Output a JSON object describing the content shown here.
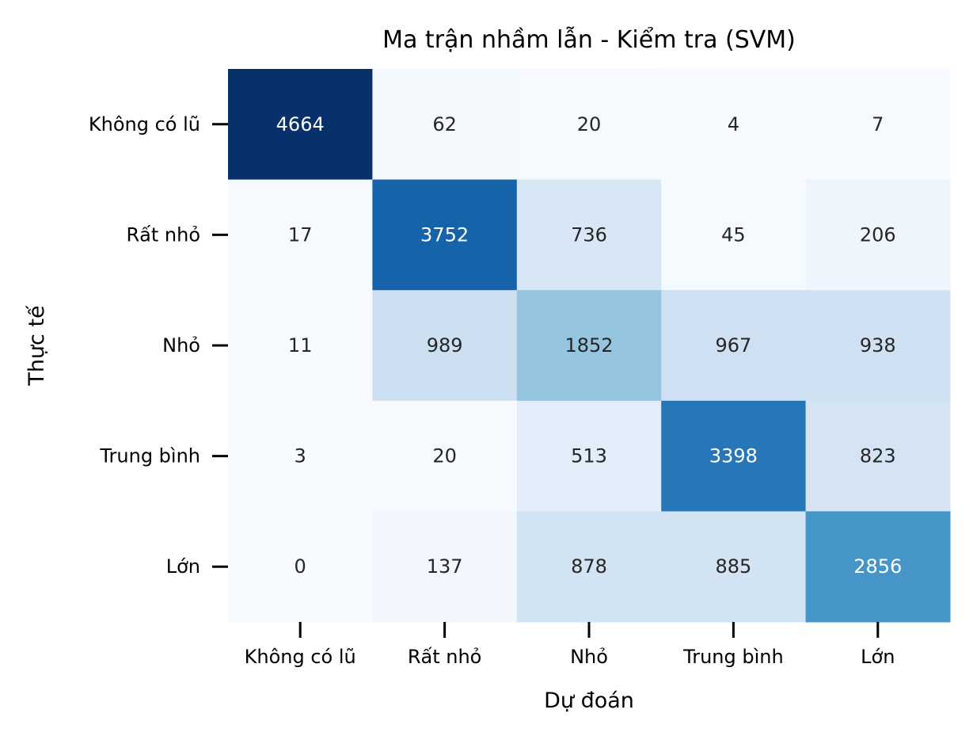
{
  "chart_data": {
    "type": "heatmap",
    "title": "Ma trận nhầm lẫn - Kiểm tra (SVM)",
    "xlabel": "Dự đoán",
    "ylabel": "Thực tế",
    "x_categories": [
      "Không có lũ",
      "Rất nhỏ",
      "Nhỏ",
      "Trung bình",
      "Lớn"
    ],
    "y_categories": [
      "Không có lũ",
      "Rất nhỏ",
      "Nhỏ",
      "Trung bình",
      "Lớn"
    ],
    "values": [
      [
        4664,
        62,
        20,
        4,
        7
      ],
      [
        17,
        3752,
        736,
        45,
        206
      ],
      [
        11,
        989,
        1852,
        967,
        938
      ],
      [
        3,
        20,
        513,
        3398,
        823
      ],
      [
        0,
        137,
        878,
        885,
        2856
      ]
    ],
    "colormap": "Blues",
    "value_range": [
      0,
      4664
    ],
    "colorbar": false
  }
}
